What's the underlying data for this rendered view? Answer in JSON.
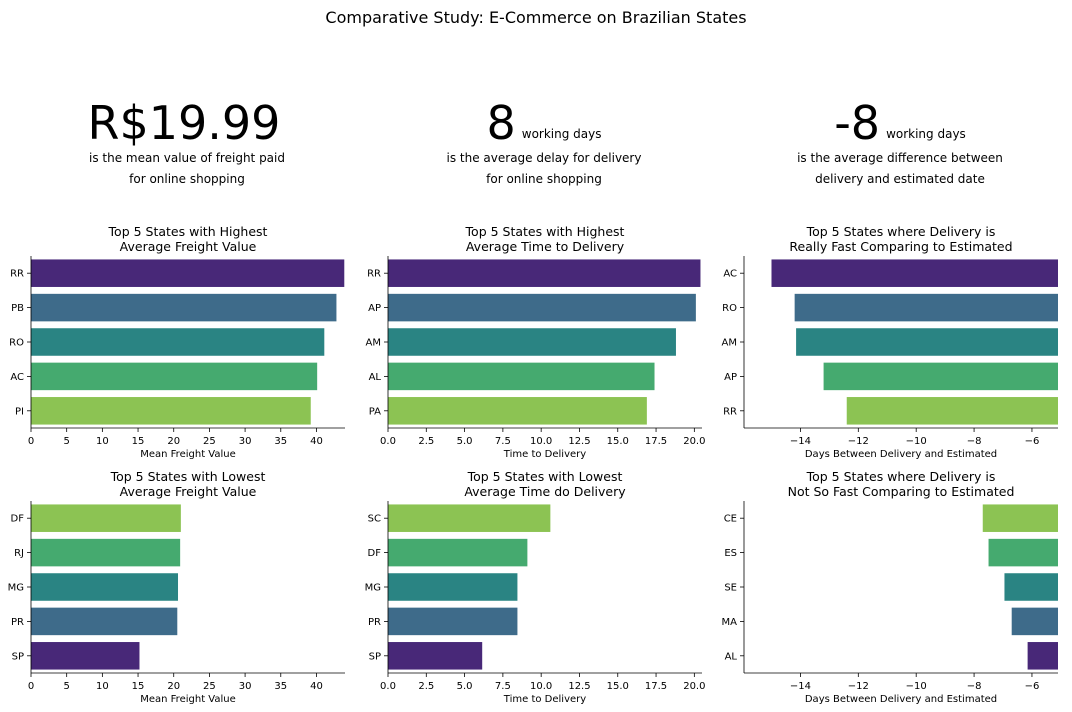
{
  "suptitle": "Comparative Study: E-Commerce on Brazilian States",
  "kpis": [
    {
      "value": "R$19.99",
      "unit": "",
      "line1": "is the mean value of freight paid",
      "line2": "for online shopping"
    },
    {
      "value": "8",
      "unit": "working days",
      "line1": "is the average delay for delivery",
      "line2": "for online shopping"
    },
    {
      "value": "-8",
      "unit": "working days",
      "line1": "is the average difference between",
      "line2": "delivery and estimated date"
    }
  ],
  "chart_data": [
    {
      "type": "bar",
      "orientation": "horizontal",
      "title": "Top 5 States with Highest\nAverage Freight Value",
      "xlabel": "Mean Freight Value",
      "ylabel": "",
      "xlim": [
        0,
        44
      ],
      "xticks": [
        "0",
        "5",
        "10",
        "15",
        "20",
        "25",
        "30",
        "35",
        "40"
      ],
      "categories": [
        "RR",
        "PB",
        "RO",
        "AC",
        "PI"
      ],
      "values": [
        43.9,
        42.8,
        41.1,
        40.1,
        39.2
      ],
      "colors": [
        "#482878",
        "#3e6b8a",
        "#2a8483",
        "#45aa6f",
        "#8cc353"
      ]
    },
    {
      "type": "bar",
      "orientation": "horizontal",
      "title": "Top 5 States with Highest\nAverage Time to Delivery",
      "xlabel": "Time to Delivery",
      "ylabel": "",
      "xlim": [
        0,
        20.5
      ],
      "xticks": [
        "0.0",
        "2.5",
        "5.0",
        "7.5",
        "10.0",
        "12.5",
        "15.0",
        "17.5",
        "20.0"
      ],
      "categories": [
        "RR",
        "AP",
        "AM",
        "AL",
        "PA"
      ],
      "values": [
        20.4,
        20.1,
        18.8,
        17.4,
        16.9
      ],
      "colors": [
        "#482878",
        "#3e6b8a",
        "#2a8483",
        "#45aa6f",
        "#8cc353"
      ]
    },
    {
      "type": "bar",
      "orientation": "horizontal",
      "title": "Top 5 States where Delivery is\nReally Fast Comparing to Estimated",
      "xlabel": "Days Between Delivery and Estimated",
      "ylabel": "",
      "xlim": [
        -15.95,
        -5.1
      ],
      "xticks": [
        "−14",
        "−12",
        "−10",
        "−8",
        "−6"
      ],
      "categories": [
        "AC",
        "RO",
        "AM",
        "AP",
        "RR"
      ],
      "values": [
        -15.0,
        -14.2,
        -14.15,
        -13.2,
        -12.4
      ],
      "colors": [
        "#482878",
        "#3e6b8a",
        "#2a8483",
        "#45aa6f",
        "#8cc353"
      ]
    },
    {
      "type": "bar",
      "orientation": "horizontal",
      "title": "Top 5 States with Lowest\nAverage Freight Value",
      "xlabel": "Mean Freight Value",
      "ylabel": "",
      "xlim": [
        0,
        44
      ],
      "xticks": [
        "0",
        "5",
        "10",
        "15",
        "20",
        "25",
        "30",
        "35",
        "40"
      ],
      "categories": [
        "DF",
        "RJ",
        "MG",
        "PR",
        "SP"
      ],
      "values": [
        21.0,
        20.9,
        20.6,
        20.5,
        15.2
      ],
      "colors": [
        "#8cc353",
        "#45aa6f",
        "#2a8483",
        "#3e6b8a",
        "#482878"
      ]
    },
    {
      "type": "bar",
      "orientation": "horizontal",
      "title": "Top 5 States with Lowest\nAverage Time do Delivery",
      "xlabel": "Time to Delivery",
      "ylabel": "",
      "xlim": [
        0,
        20.5
      ],
      "xticks": [
        "0.0",
        "2.5",
        "5.0",
        "7.5",
        "10.0",
        "12.5",
        "15.0",
        "17.5",
        "20.0"
      ],
      "categories": [
        "SC",
        "DF",
        "MG",
        "PR",
        "SP"
      ],
      "values": [
        10.6,
        9.1,
        8.45,
        8.45,
        6.15
      ],
      "colors": [
        "#8cc353",
        "#45aa6f",
        "#2a8483",
        "#3e6b8a",
        "#482878"
      ]
    },
    {
      "type": "bar",
      "orientation": "horizontal",
      "title": "Top 5 States where Delivery is\nNot So Fast Comparing to Estimated",
      "xlabel": "Days Between Delivery and Estimated",
      "ylabel": "",
      "xlim": [
        -15.95,
        -5.1
      ],
      "xticks": [
        "−14",
        "−12",
        "−10",
        "−8",
        "−6"
      ],
      "categories": [
        "CE",
        "ES",
        "SE",
        "MA",
        "AL"
      ],
      "values": [
        -7.7,
        -7.5,
        -6.95,
        -6.7,
        -6.15
      ],
      "colors": [
        "#8cc353",
        "#45aa6f",
        "#2a8483",
        "#3e6b8a",
        "#482878"
      ]
    }
  ]
}
